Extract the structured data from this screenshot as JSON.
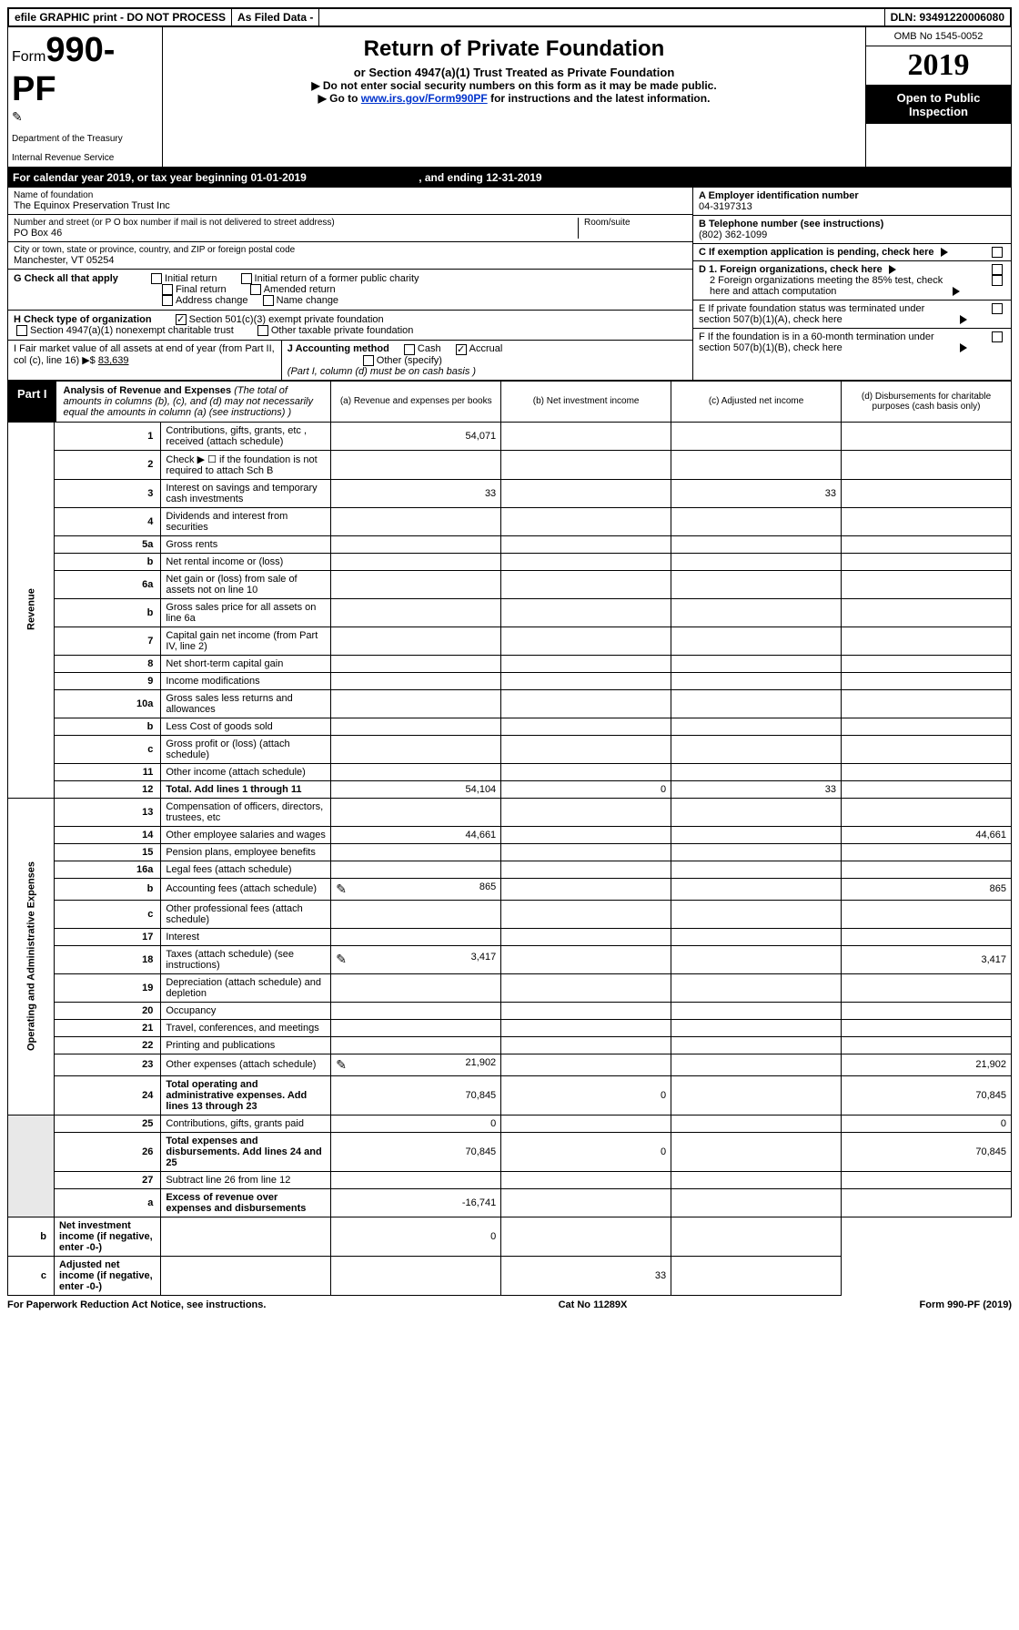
{
  "topbar": {
    "efile": "efile GRAPHIC print - DO NOT PROCESS",
    "asfiled": "As Filed Data -",
    "dln": "DLN: 93491220006080"
  },
  "header": {
    "form_prefix": "Form",
    "form_number": "990-PF",
    "dept1": "Department of the Treasury",
    "dept2": "Internal Revenue Service",
    "title": "Return of Private Foundation",
    "subtitle": "or Section 4947(a)(1) Trust Treated as Private Foundation",
    "instr1": "▶ Do not enter social security numbers on this form as it may be made public.",
    "instr2_pre": "▶ Go to ",
    "instr2_link": "www.irs.gov/Form990PF",
    "instr2_post": " for instructions and the latest information.",
    "omb": "OMB No 1545-0052",
    "year": "2019",
    "inspection": "Open to Public Inspection"
  },
  "calyear": {
    "text_pre": "For calendar year 2019, or tax year beginning ",
    "begin": "01-01-2019",
    "mid": ", and ending ",
    "end": "12-31-2019"
  },
  "info": {
    "name_label": "Name of foundation",
    "name": "The Equinox Preservation Trust Inc",
    "addr_label": "Number and street (or P O  box number if mail is not delivered to street address)",
    "addr": "PO Box 46",
    "room_label": "Room/suite",
    "city_label": "City or town, state or province, country, and ZIP or foreign postal code",
    "city": "Manchester, VT  05254",
    "ein_label": "A Employer identification number",
    "ein": "04-3197313",
    "tel_label": "B Telephone number (see instructions)",
    "tel": "(802) 362-1099",
    "c_label": "C If exemption application is pending, check here",
    "d1": "D 1. Foreign organizations, check here",
    "d2": "2 Foreign organizations meeting the 85% test, check here and attach computation",
    "e": "E  If private foundation status was terminated under section 507(b)(1)(A), check here",
    "f": "F  If the foundation is in a 60-month termination under section 507(b)(1)(B), check here"
  },
  "g": {
    "label": "G Check all that apply",
    "opts": [
      "Initial return",
      "Initial return of a former public charity",
      "Final return",
      "Amended return",
      "Address change",
      "Name change"
    ]
  },
  "h": {
    "label": "H Check type of organization",
    "opt1": "Section 501(c)(3) exempt private foundation",
    "opt2": "Section 4947(a)(1) nonexempt charitable trust",
    "opt3": "Other taxable private foundation"
  },
  "i": {
    "label": "I Fair market value of all assets at end of year (from Part II, col  (c), line 16) ▶$ ",
    "value": "83,639"
  },
  "j": {
    "label": "J Accounting method",
    "cash": "Cash",
    "accrual": "Accrual",
    "other": "Other (specify)",
    "note": "(Part I, column (d) must be on cash basis )"
  },
  "part1": {
    "label": "Part I",
    "title": "Analysis of Revenue and Expenses",
    "desc": " (The total of amounts in columns (b), (c), and (d) may not necessarily equal the amounts in column (a) (see instructions) )",
    "cols": {
      "a": "(a) Revenue and expenses per books",
      "b": "(b) Net investment income",
      "c": "(c) Adjusted net income",
      "d": "(d) Disbursements for charitable purposes (cash basis only)"
    }
  },
  "sections": {
    "revenue": "Revenue",
    "expenses": "Operating and Administrative Expenses"
  },
  "rows": [
    {
      "n": "1",
      "d": "Contributions, gifts, grants, etc , received (attach schedule)",
      "a": "54,071",
      "b": "",
      "c": "",
      "dd": ""
    },
    {
      "n": "2",
      "d": "Check ▶ ☐ if the foundation is not required to attach Sch  B",
      "a": "",
      "b": "",
      "c": "",
      "dd": ""
    },
    {
      "n": "3",
      "d": "Interest on savings and temporary cash investments",
      "a": "33",
      "b": "",
      "c": "33",
      "dd": ""
    },
    {
      "n": "4",
      "d": "Dividends and interest from securities",
      "a": "",
      "b": "",
      "c": "",
      "dd": ""
    },
    {
      "n": "5a",
      "d": "Gross rents",
      "a": "",
      "b": "",
      "c": "",
      "dd": ""
    },
    {
      "n": "b",
      "d": "Net rental income or (loss)",
      "a": "",
      "b": "",
      "c": "",
      "dd": ""
    },
    {
      "n": "6a",
      "d": "Net gain or (loss) from sale of assets not on line 10",
      "a": "",
      "b": "",
      "c": "",
      "dd": ""
    },
    {
      "n": "b",
      "d": "Gross sales price for all assets on line 6a",
      "a": "",
      "b": "",
      "c": "",
      "dd": ""
    },
    {
      "n": "7",
      "d": "Capital gain net income (from Part IV, line 2)",
      "a": "",
      "b": "",
      "c": "",
      "dd": ""
    },
    {
      "n": "8",
      "d": "Net short-term capital gain",
      "a": "",
      "b": "",
      "c": "",
      "dd": ""
    },
    {
      "n": "9",
      "d": "Income modifications",
      "a": "",
      "b": "",
      "c": "",
      "dd": ""
    },
    {
      "n": "10a",
      "d": "Gross sales less returns and allowances",
      "a": "",
      "b": "",
      "c": "",
      "dd": ""
    },
    {
      "n": "b",
      "d": "Less  Cost of goods sold",
      "a": "",
      "b": "",
      "c": "",
      "dd": ""
    },
    {
      "n": "c",
      "d": "Gross profit or (loss) (attach schedule)",
      "a": "",
      "b": "",
      "c": "",
      "dd": ""
    },
    {
      "n": "11",
      "d": "Other income (attach schedule)",
      "a": "",
      "b": "",
      "c": "",
      "dd": ""
    },
    {
      "n": "12",
      "d": "Total. Add lines 1 through 11",
      "a": "54,104",
      "b": "0",
      "c": "33",
      "dd": "",
      "bold": true
    },
    {
      "n": "13",
      "d": "Compensation of officers, directors, trustees, etc",
      "a": "",
      "b": "",
      "c": "",
      "dd": ""
    },
    {
      "n": "14",
      "d": "Other employee salaries and wages",
      "a": "44,661",
      "b": "",
      "c": "",
      "dd": "44,661"
    },
    {
      "n": "15",
      "d": "Pension plans, employee benefits",
      "a": "",
      "b": "",
      "c": "",
      "dd": ""
    },
    {
      "n": "16a",
      "d": "Legal fees (attach schedule)",
      "a": "",
      "b": "",
      "c": "",
      "dd": ""
    },
    {
      "n": "b",
      "d": "Accounting fees (attach schedule)",
      "a": "865",
      "b": "",
      "c": "",
      "dd": "865",
      "icon": true
    },
    {
      "n": "c",
      "d": "Other professional fees (attach schedule)",
      "a": "",
      "b": "",
      "c": "",
      "dd": ""
    },
    {
      "n": "17",
      "d": "Interest",
      "a": "",
      "b": "",
      "c": "",
      "dd": ""
    },
    {
      "n": "18",
      "d": "Taxes (attach schedule) (see instructions)",
      "a": "3,417",
      "b": "",
      "c": "",
      "dd": "3,417",
      "icon": true
    },
    {
      "n": "19",
      "d": "Depreciation (attach schedule) and depletion",
      "a": "",
      "b": "",
      "c": "",
      "dd": ""
    },
    {
      "n": "20",
      "d": "Occupancy",
      "a": "",
      "b": "",
      "c": "",
      "dd": ""
    },
    {
      "n": "21",
      "d": "Travel, conferences, and meetings",
      "a": "",
      "b": "",
      "c": "",
      "dd": ""
    },
    {
      "n": "22",
      "d": "Printing and publications",
      "a": "",
      "b": "",
      "c": "",
      "dd": ""
    },
    {
      "n": "23",
      "d": "Other expenses (attach schedule)",
      "a": "21,902",
      "b": "",
      "c": "",
      "dd": "21,902",
      "icon": true
    },
    {
      "n": "24",
      "d": "Total operating and administrative expenses. Add lines 13 through 23",
      "a": "70,845",
      "b": "0",
      "c": "",
      "dd": "70,845",
      "bold": true
    },
    {
      "n": "25",
      "d": "Contributions, gifts, grants paid",
      "a": "0",
      "b": "",
      "c": "",
      "dd": "0"
    },
    {
      "n": "26",
      "d": "Total expenses and disbursements. Add lines 24 and 25",
      "a": "70,845",
      "b": "0",
      "c": "",
      "dd": "70,845",
      "bold": true
    },
    {
      "n": "27",
      "d": "Subtract line 26 from line 12",
      "a": "",
      "b": "",
      "c": "",
      "dd": ""
    },
    {
      "n": "a",
      "d": "Excess of revenue over expenses and disbursements",
      "a": "-16,741",
      "b": "",
      "c": "",
      "dd": "",
      "bold": true
    },
    {
      "n": "b",
      "d": "Net investment income (if negative, enter -0-)",
      "a": "",
      "b": "0",
      "c": "",
      "dd": "",
      "bold": true
    },
    {
      "n": "c",
      "d": "Adjusted net income (if negative, enter -0-)",
      "a": "",
      "b": "",
      "c": "33",
      "dd": "",
      "bold": true
    }
  ],
  "footer": {
    "left": "For Paperwork Reduction Act Notice, see instructions.",
    "mid": "Cat  No  11289X",
    "right": "Form 990-PF (2019)"
  }
}
